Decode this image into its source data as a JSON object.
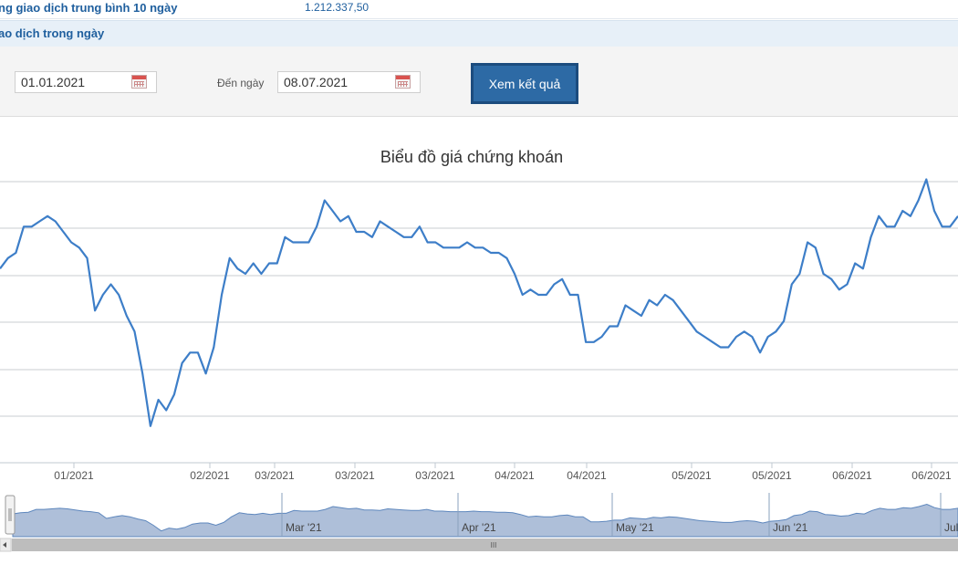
{
  "summary": {
    "label": "ng giao dịch trung bình 10 ngày",
    "value": "1.212.337,50"
  },
  "section": {
    "title": "ao dịch trong ngày"
  },
  "filter": {
    "from_value": "01.01.2021",
    "to_label": "Đến ngày",
    "to_value": "08.07.2021",
    "submit_label": "Xem kết quả"
  },
  "chart_data": {
    "type": "line",
    "title": "Biểu đồ giá chứng khoán",
    "grid": true,
    "x_tick_labels": [
      "01/2021",
      "02/2021",
      "03/2021",
      "03/2021",
      "03/2021",
      "04/2021",
      "04/2021",
      "05/2021",
      "05/2021",
      "06/2021",
      "06/2021"
    ],
    "navigator_labels": [
      "Mar '21",
      "Apr '21",
      "May '21",
      "Jun '21",
      "Jul"
    ],
    "scrollbar_grip": "III",
    "line_color": "#3d7ec8",
    "navigator_fill": "#aebfd9",
    "y_index": [
      38,
      40,
      41,
      46,
      46,
      47,
      48,
      47,
      45,
      43,
      42,
      40,
      30,
      33,
      35,
      33,
      29,
      26,
      18,
      8,
      13,
      11,
      14,
      20,
      22,
      22,
      18,
      23,
      33,
      40,
      38,
      37,
      39,
      37,
      39,
      39,
      44,
      43,
      43,
      43,
      46,
      51,
      49,
      47,
      48,
      45,
      45,
      44,
      47,
      46,
      45,
      44,
      44,
      46,
      43,
      43,
      42,
      42,
      42,
      43,
      42,
      42,
      41,
      41,
      40,
      37,
      33,
      34,
      33,
      33,
      35,
      36,
      33,
      33,
      24,
      24,
      25,
      27,
      27,
      31,
      30,
      29,
      32,
      31,
      33,
      32,
      30,
      28,
      26,
      25,
      24,
      23,
      23,
      25,
      26,
      25,
      22,
      25,
      26,
      28,
      35,
      37,
      43,
      42,
      37,
      36,
      34,
      35,
      39,
      38,
      44,
      48,
      46,
      46,
      49,
      48,
      51,
      55,
      49,
      46,
      46,
      48
    ]
  }
}
